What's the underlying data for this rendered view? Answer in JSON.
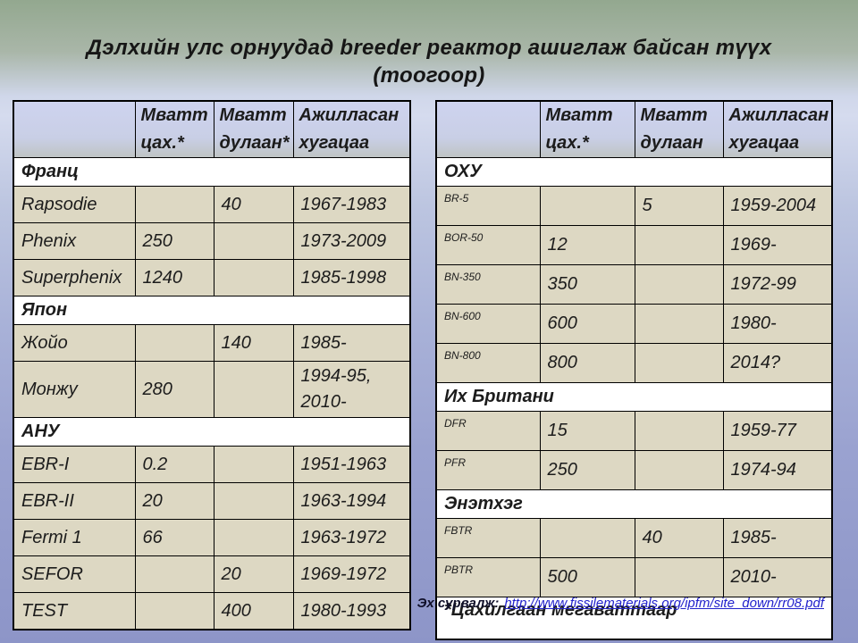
{
  "title": {
    "line1": "Дэлхийн улс орнуудад breeder реактор ашиглаж байсан түүх",
    "line2": "(тоогоор)"
  },
  "tables": {
    "left": {
      "headers": [
        "",
        "Мватт цах.*",
        "Мватт дулаан*",
        "Ажилласан хугацаа"
      ],
      "sections": [
        {
          "name": "Франц",
          "rows": [
            [
              "Rapsodie",
              "",
              "40",
              "1967-1983"
            ],
            [
              "Phenix",
              "250",
              "",
              "1973-2009"
            ],
            [
              "Superphenix",
              "1240",
              "",
              "1985-1998"
            ]
          ]
        },
        {
          "name": "Япон",
          "rows": [
            [
              "Жойо",
              "",
              "140",
              "1985-"
            ],
            [
              "Монжу",
              "280",
              "",
              "1994-95,\n2010-"
            ]
          ]
        },
        {
          "name": "АНУ",
          "rows": [
            [
              "EBR-I",
              "0.2",
              "",
              "1951-1963"
            ],
            [
              "EBR-II",
              "20",
              "",
              "1963-1994"
            ],
            [
              "Fermi 1",
              "66",
              "",
              "1963-1972"
            ],
            [
              "SEFOR",
              "",
              "20",
              "1969-1972"
            ],
            [
              "TEST",
              "",
              "400",
              "1980-1993"
            ]
          ]
        }
      ]
    },
    "right": {
      "headers": [
        "",
        "Мватт цах.*",
        "Мватт дулаан",
        "Ажилласан хугацаа"
      ],
      "sections": [
        {
          "name": "ОХУ",
          "rows": [
            [
              "BR-5",
              "",
              "5",
              "1959-2004"
            ],
            [
              "BOR-50",
              "12",
              "",
              "1969-"
            ],
            [
              "BN-350",
              "350",
              "",
              "1972-99"
            ],
            [
              "BN-600",
              "600",
              "",
              "1980-"
            ],
            [
              "BN-800",
              "800",
              "",
              "2014?"
            ]
          ]
        },
        {
          "name": "Их Британи",
          "rows": [
            [
              "DFR",
              "15",
              "",
              "1959-77"
            ],
            [
              "PFR",
              "250",
              "",
              "1974-94"
            ]
          ]
        },
        {
          "name": "Энэтхэг",
          "rows": [
            [
              "FBTR",
              "",
              "40",
              "1985-"
            ],
            [
              "PBTR",
              "500",
              "",
              "2010-"
            ]
          ]
        }
      ],
      "footnote": "*Цахилгаан мегаваттаар"
    }
  },
  "source": {
    "label": "Эх сурвалж:",
    "url": "http://www.fissilematerials.org/ipfm/site_down/rr08.pdf"
  },
  "colors": {
    "background_top": "#93a88f",
    "background_mid": "#d5dbee",
    "background_bottom": "#8d95c8",
    "cell_beige": "#ddd8c3",
    "header_lavender": "#ced3ef",
    "section_white": "#ffffff",
    "border": "#000000",
    "link_blue": "#2222cc",
    "title_text": "#161616"
  }
}
